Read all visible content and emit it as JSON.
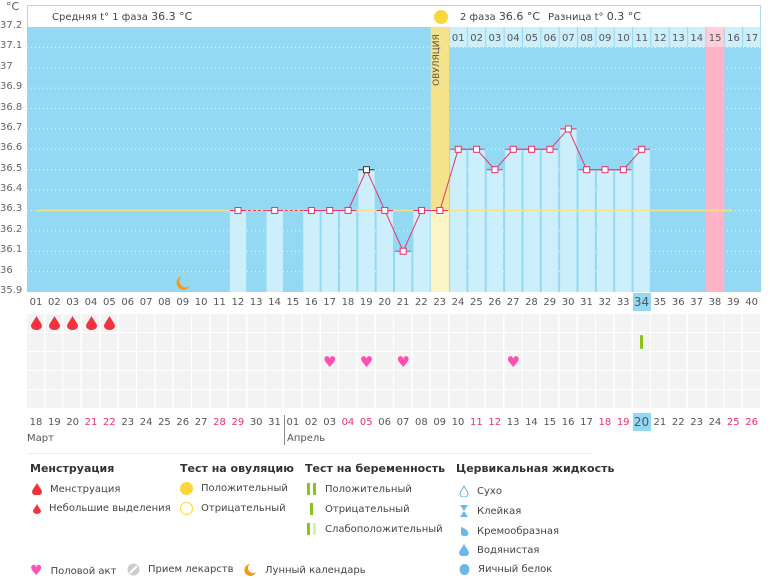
{
  "unit": "°C",
  "header": {
    "phase1": "Средняя t° 1 фаза",
    "phase1_value": "36.3 °C",
    "phase2": "2 фаза",
    "phase2_value": "36.6 °C",
    "diff": "Разница t°",
    "diff_value": "0.3 °C",
    "ovulation_label": "ОВУЛЯЦИЯ"
  },
  "colors": {
    "plot_bg": "#94d9f3",
    "bar": "#cdeefb",
    "line": "#e8336b",
    "ovulation": "#f5e38c",
    "highlight": "#ffb3c7",
    "coverline": "#f5e38c"
  },
  "chart_data": {
    "type": "line",
    "ylim": [
      35.9,
      37.2
    ],
    "yticks": [
      "37.2",
      "37.1",
      "37",
      "36.9",
      "36.8",
      "36.7",
      "36.6",
      "36.5",
      "36.4",
      "36.3",
      "36.2",
      "36.1",
      "36",
      "35.9"
    ],
    "days": [
      "01",
      "02",
      "03",
      "04",
      "05",
      "06",
      "07",
      "08",
      "09",
      "10",
      "11",
      "12",
      "13",
      "14",
      "15",
      "16",
      "17",
      "18",
      "19",
      "20",
      "21",
      "22",
      "23",
      "24",
      "25",
      "26",
      "27",
      "28",
      "29",
      "30",
      "31",
      "32",
      "33",
      "34",
      "35",
      "36",
      "37",
      "38",
      "39",
      "40"
    ],
    "temps": {
      "12": 36.3,
      "14": 36.3,
      "16": 36.3,
      "17": 36.3,
      "18": 36.3,
      "19": 36.5,
      "20": 36.3,
      "21": 36.1,
      "22": 36.3,
      "23": 36.3,
      "24": 36.6,
      "25": 36.6,
      "26": 36.5,
      "27": 36.6,
      "28": 36.6,
      "29": 36.6,
      "30": 36.7,
      "31": 36.5,
      "32": 36.5,
      "33": 36.5,
      "34": 36.6
    },
    "coverline": 36.3,
    "ovulation_day": 23,
    "current_day": 34,
    "highlight_day": 38,
    "moon_day": 9,
    "phase2_days": [
      "01",
      "02",
      "03",
      "04",
      "05",
      "06",
      "07",
      "08",
      "09",
      "10",
      "11",
      "12",
      "13",
      "14",
      "15",
      "16",
      "17"
    ]
  },
  "markers": {
    "menstruation_days": [
      1,
      2,
      3,
      4,
      5
    ],
    "pregnancy_test_negative_days": [
      34
    ],
    "intercourse_days": [
      17,
      19,
      21,
      27
    ]
  },
  "dates": [
    "18",
    "19",
    "20",
    "21",
    "22",
    "23",
    "24",
    "25",
    "26",
    "27",
    "28",
    "29",
    "30",
    "31",
    "01",
    "02",
    "03",
    "04",
    "05",
    "06",
    "07",
    "08",
    "09",
    "10",
    "11",
    "12",
    "13",
    "14",
    "15",
    "16",
    "17",
    "18",
    "19",
    "20",
    "21",
    "22",
    "23",
    "24",
    "25",
    "26"
  ],
  "weekend_idx": [
    3,
    4,
    10,
    11,
    17,
    18,
    24,
    25,
    31,
    32,
    38,
    39
  ],
  "months": {
    "march": "Март",
    "april": "Апрель"
  },
  "legend": {
    "menstruation": {
      "title": "Менструация",
      "items": [
        "Менструация",
        "Небольшие выделения"
      ]
    },
    "ovulation_test": {
      "title": "Тест на овуляцию",
      "items": [
        "Положительный",
        "Отрицательный"
      ]
    },
    "pregnancy_test": {
      "title": "Тест на беременность",
      "items": [
        "Положительный",
        "Отрицательный",
        "Слабоположительный"
      ]
    },
    "cervical": {
      "title": "Цервикальная жидкость",
      "items": [
        "Сухо",
        "Клейкая",
        "Кремообразная",
        "Водянистая",
        "Яичный белок"
      ]
    },
    "other": [
      "Половой акт",
      "Прием лекарств",
      "Лунный календарь"
    ]
  }
}
